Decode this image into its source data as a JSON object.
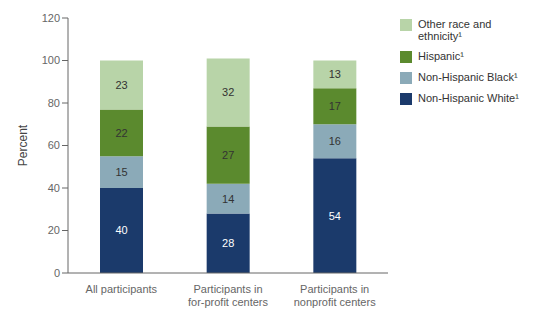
{
  "chart_data": {
    "type": "bar",
    "stacked": true,
    "data_labels": true,
    "grid": false,
    "legend": "right",
    "ylabel": "Percent",
    "categories": [
      "All participants",
      "Participants in\nfor-profit centers",
      "Participants in\nnonprofit centers"
    ],
    "series": [
      {
        "name": "Non-Hispanic White¹",
        "color": "#1b3a6b",
        "values": [
          40,
          28,
          54
        ]
      },
      {
        "name": "Non-Hispanic Black¹",
        "color": "#8baab8",
        "values": [
          15,
          14,
          16
        ]
      },
      {
        "name": "Hispanic¹",
        "color": "#5b8a2e",
        "values": [
          22,
          27,
          17
        ]
      },
      {
        "name": "Other race and\nethnicity¹",
        "color": "#b8d4a8",
        "values": [
          23,
          32,
          13
        ]
      }
    ],
    "ylim": [
      0,
      120
    ],
    "yticks": [
      0,
      20,
      40,
      60,
      80,
      100,
      120
    ]
  }
}
